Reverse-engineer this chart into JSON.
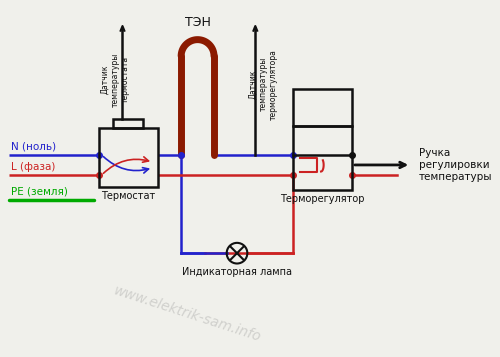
{
  "bg_color": "#f0f0eb",
  "title_ten": "ТЭН",
  "label_n": "N (ноль)",
  "label_l": "L (фаза)",
  "label_pe": "PE (земля)",
  "label_thermostat": "Термостат",
  "label_thermoreg": "Терморегулятор",
  "label_lamp": "Индикаторная лампа",
  "label_sensor1": "Датчик\nтемпературы\nтермостата",
  "label_sensor2": "Датчик\nтемпературы\nтерморегулятора",
  "label_knob_text": "Ручка\nрегулировки\nтемпературы",
  "watermark": "www.elektrik-sam.info",
  "color_n": "#2222cc",
  "color_l": "#cc2222",
  "color_pe": "#00aa00",
  "color_ten": "#8B1A00",
  "color_black": "#111111",
  "color_box": "#111111",
  "color_wm": "#888888"
}
